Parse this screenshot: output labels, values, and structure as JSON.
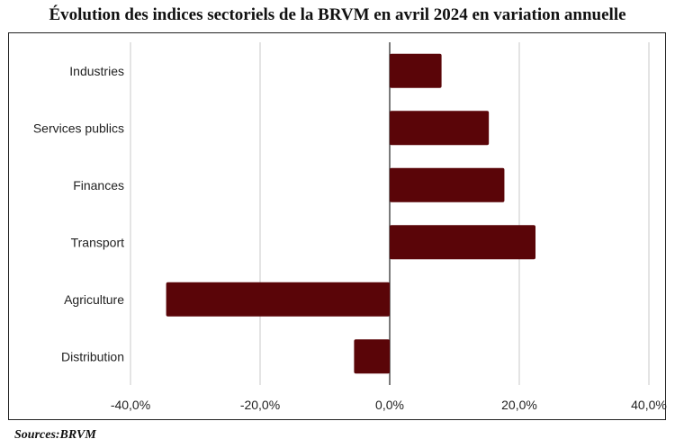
{
  "title": "Évolution des indices sectoriels de la BRVM en avril 2024 en variation annuelle",
  "source": "Sources:BRVM",
  "chart_data": {
    "type": "bar",
    "orientation": "horizontal",
    "categories": [
      "Industries",
      "Services publics",
      "Finances",
      "Transport",
      "Agriculture",
      "Distribution"
    ],
    "values": [
      8.0,
      15.3,
      17.7,
      22.5,
      -34.5,
      -5.5
    ],
    "unit": "%",
    "xlim": [
      -40,
      40
    ],
    "xticks": [
      -40,
      -20,
      0,
      20,
      40
    ],
    "xtick_labels": [
      "-40,0%",
      "-20,0%",
      "0,0%",
      "20,0%",
      "40,0%"
    ],
    "grid": "vertical",
    "legend": "none",
    "bar_color": "#5a0508"
  }
}
